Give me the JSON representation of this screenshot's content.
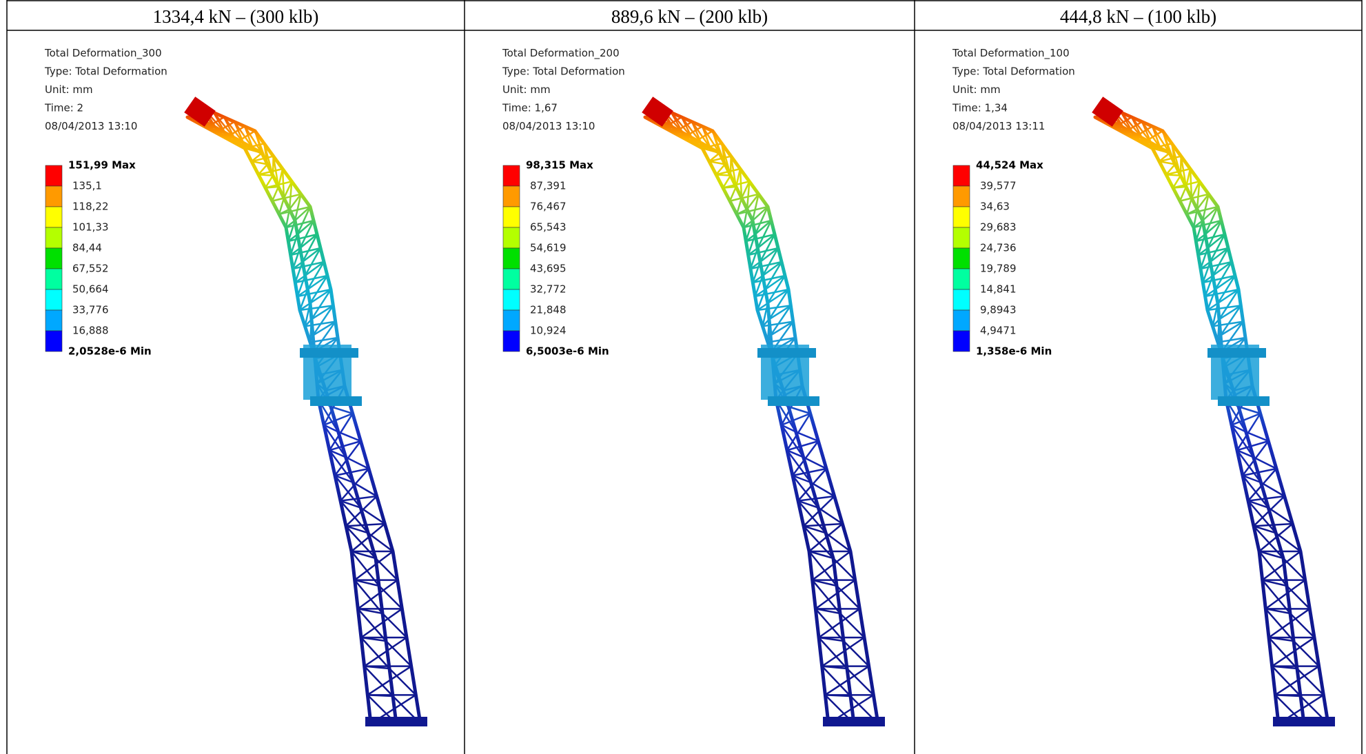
{
  "panels": [
    {
      "header": "1334,4 kN – (300 klb)",
      "title": "Total Deformation_300",
      "type": "Type: Total Deformation",
      "unit": "Unit: mm",
      "time": "Time: 2",
      "date": "08/04/2013 13:10",
      "legend": [
        "151,99 Max",
        "135,1",
        "118,22",
        "101,33",
        "84,44",
        "67,552",
        "50,664",
        "33,776",
        "16,888",
        "2,0528e-6 Min"
      ]
    },
    {
      "header": "889,6 kN – (200 klb)",
      "title": "Total Deformation_200",
      "type": "Type: Total Deformation",
      "unit": "Unit: mm",
      "time": "Time: 1,67",
      "date": "08/04/2013 13:10",
      "legend": [
        "98,315 Max",
        "87,391",
        "76,467",
        "65,543",
        "54,619",
        "43,695",
        "32,772",
        "21,848",
        "10,924",
        "6,5003e-6 Min"
      ]
    },
    {
      "header": "444,8 kN – (100 klb)",
      "title": "Total Deformation_100",
      "type": "Type: Total Deformation",
      "unit": "Unit: mm",
      "time": "Time: 1,34",
      "date": "08/04/2013 13:11",
      "legend": [
        "44,524 Max",
        "39,577",
        "34,63",
        "29,683",
        "24,736",
        "19,789",
        "14,841",
        "9,8943",
        "4,9471",
        "1,358e-6 Min"
      ]
    }
  ]
}
